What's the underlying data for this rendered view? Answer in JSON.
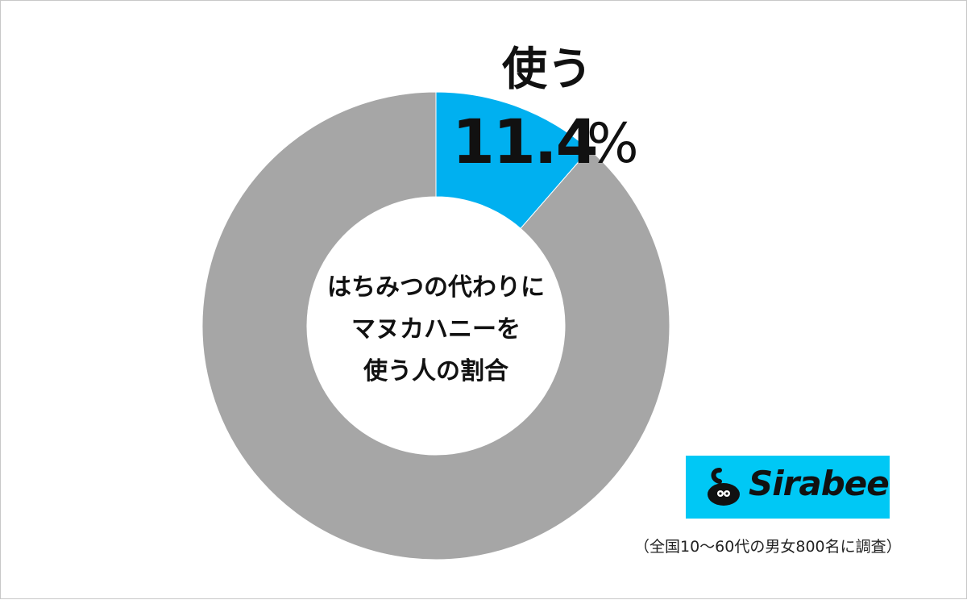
{
  "chart_data": {
    "type": "pie",
    "title": "はちみつの代わりにマヌカハニーを使う人の割合",
    "slices": [
      {
        "label": "使う",
        "value": 11.4,
        "color": "#00b0f0"
      },
      {
        "label": "",
        "value": 88.6,
        "color": "#a6a6a6"
      }
    ],
    "center_lines": [
      "はちみつの代わりに",
      "マヌカハニーを",
      "使う人の割合"
    ]
  },
  "annotation": {
    "label": "使う",
    "value": "11.4",
    "unit": "%"
  },
  "logo": {
    "text": "Sirabee",
    "background": "#00c8f5"
  },
  "footnote": "（全国10〜60代の男女800名に調査）"
}
